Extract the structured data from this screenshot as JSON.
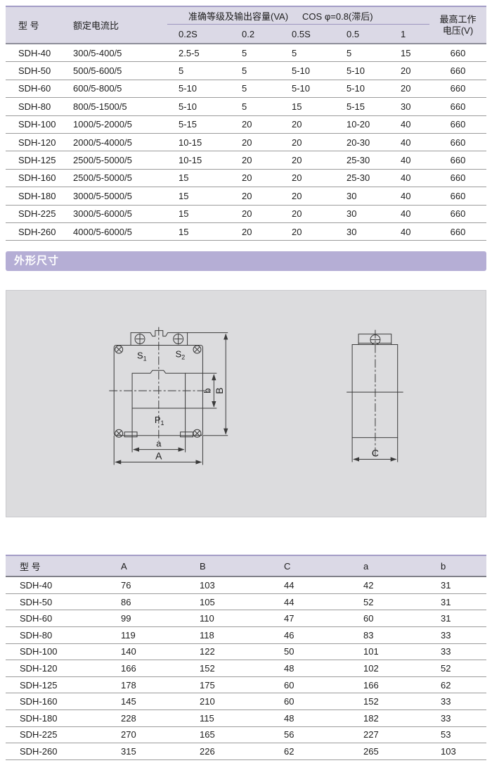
{
  "accent": {
    "banner_bg": "#b5aed5",
    "table_header_bg": "#dbd9e6",
    "table_border": "#a39cc6",
    "diagram_bg": "#dcdcde"
  },
  "spec_table": {
    "headers": {
      "model": "型 号",
      "ratio": "额定电流比",
      "accuracy_group": "准确等级及输出容量(VA)",
      "cos_group": "COS φ=0.8(滞后)",
      "sub": [
        "0.2S",
        "0.2",
        "0.5S",
        "0.5",
        "1"
      ],
      "voltage_line1": "最高工作",
      "voltage_line2": "电压(V)"
    },
    "rows": [
      {
        "model": "SDH-40",
        "ratio": "300/5-400/5",
        "values": [
          "2.5-5",
          "5",
          "5",
          "5",
          "15"
        ],
        "voltage": "660"
      },
      {
        "model": "SDH-50",
        "ratio": "500/5-600/5",
        "values": [
          "5",
          "5",
          "5-10",
          "5-10",
          "20"
        ],
        "voltage": "660"
      },
      {
        "model": "SDH-60",
        "ratio": "600/5-800/5",
        "values": [
          "5-10",
          "5",
          "5-10",
          "5-10",
          "20"
        ],
        "voltage": "660"
      },
      {
        "model": "SDH-80",
        "ratio": "800/5-1500/5",
        "values": [
          "5-10",
          "5",
          "15",
          "5-15",
          "30"
        ],
        "voltage": "660"
      },
      {
        "model": "SDH-100",
        "ratio": "1000/5-2000/5",
        "values": [
          "5-15",
          "20",
          "20",
          "10-20",
          "40"
        ],
        "voltage": "660"
      },
      {
        "model": "SDH-120",
        "ratio": "2000/5-4000/5",
        "values": [
          "10-15",
          "20",
          "20",
          "20-30",
          "40"
        ],
        "voltage": "660"
      },
      {
        "model": "SDH-125",
        "ratio": "2500/5-5000/5",
        "values": [
          "10-15",
          "20",
          "20",
          "25-30",
          "40"
        ],
        "voltage": "660"
      },
      {
        "model": "SDH-160",
        "ratio": "2500/5-5000/5",
        "values": [
          "15",
          "20",
          "20",
          "25-30",
          "40"
        ],
        "voltage": "660"
      },
      {
        "model": "SDH-180",
        "ratio": "3000/5-5000/5",
        "values": [
          "15",
          "20",
          "20",
          "30",
          "40"
        ],
        "voltage": "660"
      },
      {
        "model": "SDH-225",
        "ratio": "3000/5-6000/5",
        "values": [
          "15",
          "20",
          "20",
          "30",
          "40"
        ],
        "voltage": "660"
      },
      {
        "model": "SDH-260",
        "ratio": "4000/5-6000/5",
        "values": [
          "15",
          "20",
          "20",
          "30",
          "40"
        ],
        "voltage": "660"
      }
    ]
  },
  "section_banner": {
    "title": "外形尺寸"
  },
  "diagram": {
    "labels": {
      "s1": {
        "base": "S",
        "sub": "1"
      },
      "s2": {
        "base": "S",
        "sub": "2"
      },
      "p1": {
        "base": "P",
        "sub": "1"
      },
      "a_inner": "a",
      "a_outer": "A",
      "b_inner": "b",
      "b_outer": "B",
      "c": "C"
    }
  },
  "dimension_table": {
    "headers": [
      "型 号",
      "A",
      "B",
      "C",
      "a",
      "b"
    ],
    "rows": [
      {
        "model": "SDH-40",
        "values": [
          "76",
          "103",
          "44",
          "42",
          "31"
        ]
      },
      {
        "model": "SDH-50",
        "values": [
          "86",
          "105",
          "44",
          "52",
          "31"
        ]
      },
      {
        "model": "SDH-60",
        "values": [
          "99",
          "110",
          "47",
          "60",
          "31"
        ]
      },
      {
        "model": "SDH-80",
        "values": [
          "119",
          "118",
          "46",
          "83",
          "33"
        ]
      },
      {
        "model": "SDH-100",
        "values": [
          "140",
          "122",
          "50",
          "101",
          "33"
        ]
      },
      {
        "model": "SDH-120",
        "values": [
          "166",
          "152",
          "48",
          "102",
          "52"
        ]
      },
      {
        "model": "SDH-125",
        "values": [
          "178",
          "175",
          "60",
          "166",
          "62"
        ]
      },
      {
        "model": "SDH-160",
        "values": [
          "145",
          "210",
          "60",
          "152",
          "33"
        ]
      },
      {
        "model": "SDH-180",
        "values": [
          "228",
          "115",
          "48",
          "182",
          "33"
        ]
      },
      {
        "model": "SDH-225",
        "values": [
          "270",
          "165",
          "56",
          "227",
          "53"
        ]
      },
      {
        "model": "SDH-260",
        "values": [
          "315",
          "226",
          "62",
          "265",
          "103"
        ]
      }
    ]
  }
}
